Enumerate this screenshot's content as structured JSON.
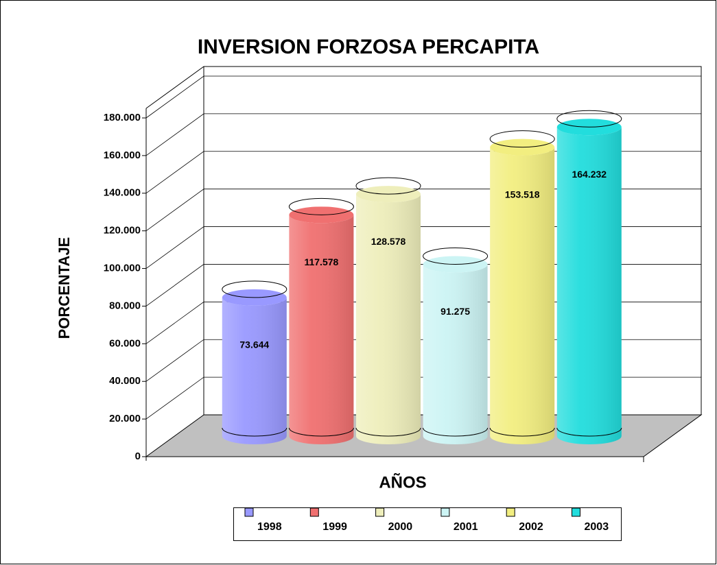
{
  "chart_data": {
    "type": "cylinder",
    "title": "INVERSION FORZOSA PERCAPITA",
    "x_label": "AÑOS",
    "y_label": "PORCENTAJE",
    "categories": [
      "1998",
      "1999",
      "2000",
      "2001",
      "2002",
      "2003"
    ],
    "values": [
      73.644,
      117.578,
      128.578,
      91.275,
      153.518,
      164.232
    ],
    "colors": [
      "#9999ff",
      "#f07070",
      "#eeeebb",
      "#ccf4f4",
      "#f2ee80",
      "#22dddd"
    ],
    "ylim": [
      0,
      180
    ],
    "yticks": [
      0,
      {
        "value": 20,
        "label": "20.000"
      },
      {
        "value": 40,
        "label": "40.000"
      },
      {
        "value": 60,
        "label": "60.000"
      },
      {
        "value": 80,
        "label": "80.000"
      },
      {
        "value": 100,
        "label": "100.000"
      },
      {
        "value": 120,
        "label": "120.000"
      },
      {
        "value": 140,
        "label": "140.000"
      },
      {
        "value": 160,
        "label": "160.000"
      },
      {
        "value": 180,
        "label": "180.000"
      }
    ],
    "grid": true,
    "legend": "bottom"
  }
}
